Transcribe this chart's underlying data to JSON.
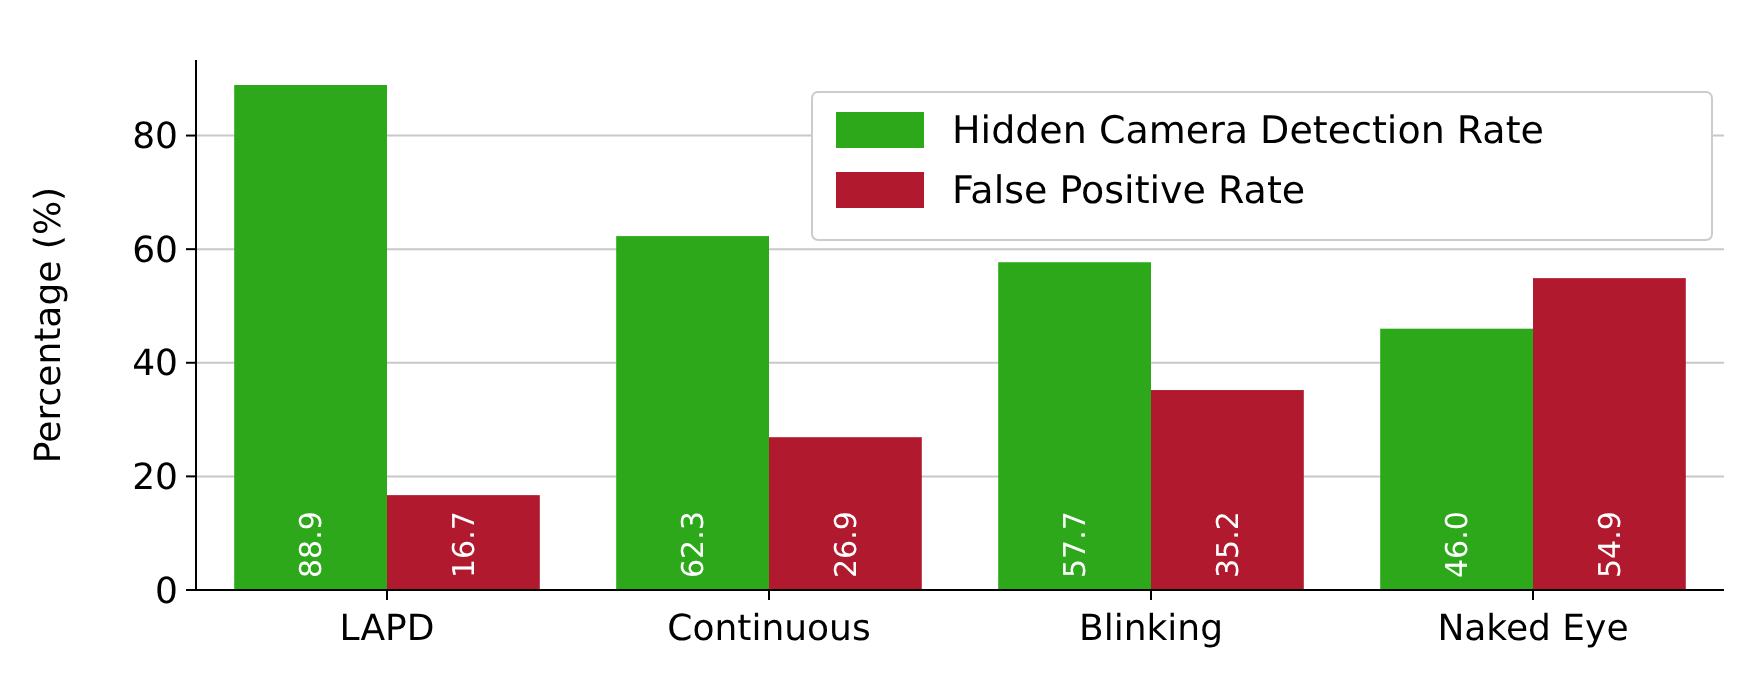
{
  "chart_data": {
    "type": "bar",
    "ylabel": "Percentage (%)",
    "categories": [
      "LAPD",
      "Continuous",
      "Blinking",
      "Naked Eye"
    ],
    "series": [
      {
        "name": "Hidden Camera Detection Rate",
        "color": "#2ca81a",
        "values": [
          88.9,
          62.3,
          57.7,
          46.0
        ],
        "value_labels": [
          "88.9",
          "62.3",
          "57.7",
          "46.0"
        ]
      },
      {
        "name": "False Positive Rate",
        "color": "#b0192e",
        "values": [
          16.7,
          26.9,
          35.2,
          54.9
        ],
        "value_labels": [
          "16.7",
          "26.9",
          "35.2",
          "54.9"
        ]
      }
    ],
    "ylim": [
      0,
      93.3
    ],
    "yticks": [
      0,
      20,
      40,
      60,
      80
    ],
    "grid": "y",
    "legend": "top right"
  }
}
